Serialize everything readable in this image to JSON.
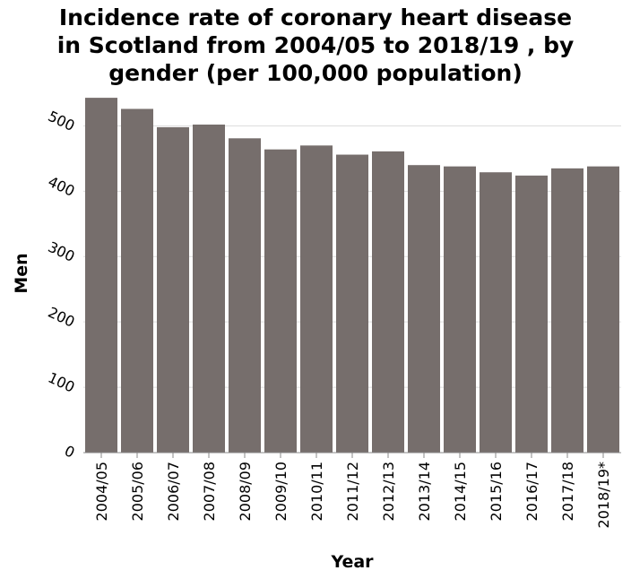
{
  "chart_data": {
    "type": "bar",
    "title": "Incidence rate of coronary heart disease\nin Scotland from 2004/05 to 2018/19 , by\ngender (per 100,000 population)",
    "xlabel": "Year",
    "ylabel": "Men",
    "categories": [
      "2004/05",
      "2005/06",
      "2006/07",
      "2007/08",
      "2008/09",
      "2009/10",
      "2010/11",
      "2011/12",
      "2012/13",
      "2013/14",
      "2014/15",
      "2015/16",
      "2016/17",
      "2017/18",
      "2018/19*"
    ],
    "values": [
      543,
      526,
      498,
      502,
      481,
      464,
      470,
      456,
      461,
      440,
      438,
      429,
      424,
      435,
      438
    ],
    "ylim": [
      0,
      550
    ],
    "yticks": [
      0,
      100,
      200,
      300,
      400,
      500
    ],
    "grid": true,
    "bar_color": "#766e6c"
  }
}
